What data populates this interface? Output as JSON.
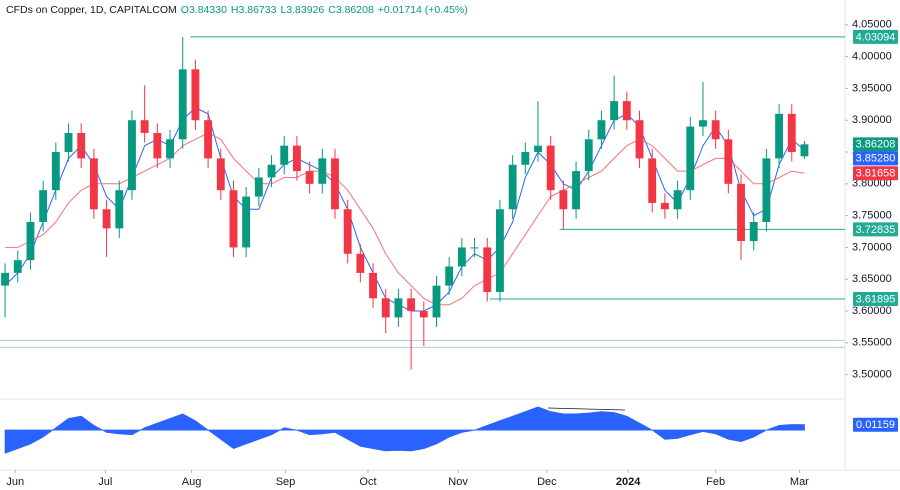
{
  "chart_data": {
    "type": "candlestick",
    "header": [
      "CFDs on Copper, 1D, CAPITALCOM",
      "O3.84330",
      "H3.86733",
      "L3.83926",
      "C3.86208",
      "+0.01714 (+0.45%)"
    ],
    "up_color": "#089981",
    "down_color": "#f23645",
    "candles": {
      "open": [
        3.64,
        3.66,
        3.68,
        3.74,
        3.79,
        3.85,
        3.88,
        3.84,
        3.76,
        3.73,
        3.79,
        3.9,
        3.88,
        3.84,
        3.87,
        3.98,
        3.9,
        3.84,
        3.79,
        3.7,
        3.78,
        3.81,
        3.83,
        3.86,
        3.82,
        3.8,
        3.84,
        3.76,
        3.69,
        3.66,
        3.62,
        3.59,
        3.62,
        3.6,
        3.59,
        3.64,
        3.67,
        3.7,
        3.7,
        3.63,
        3.76,
        3.83,
        3.85,
        3.86,
        3.79,
        3.76,
        3.82,
        3.87,
        3.9,
        3.93,
        3.9,
        3.84,
        3.77,
        3.76,
        3.79,
        3.89,
        3.9,
        3.87,
        3.8,
        3.71,
        3.74,
        3.84,
        3.91,
        3.8433
      ],
      "high": [
        3.675,
        3.695,
        3.755,
        3.805,
        3.865,
        3.895,
        3.895,
        3.855,
        3.775,
        3.805,
        3.915,
        3.955,
        3.895,
        3.885,
        4.031,
        3.995,
        3.915,
        3.855,
        3.805,
        3.795,
        3.825,
        3.845,
        3.875,
        3.875,
        3.835,
        3.855,
        3.855,
        3.775,
        3.705,
        3.675,
        3.635,
        3.635,
        3.635,
        3.615,
        3.655,
        3.685,
        3.715,
        3.715,
        3.715,
        3.775,
        3.845,
        3.865,
        3.93,
        3.875,
        3.805,
        3.835,
        3.885,
        3.915,
        3.97,
        3.945,
        3.915,
        3.855,
        3.785,
        3.805,
        3.905,
        3.96,
        3.915,
        3.885,
        3.815,
        3.755,
        3.855,
        3.925,
        3.925,
        3.86733
      ],
      "low": [
        3.59,
        3.645,
        3.665,
        3.725,
        3.775,
        3.835,
        3.825,
        3.745,
        3.685,
        3.715,
        3.775,
        3.865,
        3.825,
        3.825,
        3.855,
        3.885,
        3.825,
        3.775,
        3.685,
        3.685,
        3.765,
        3.795,
        3.815,
        3.805,
        3.785,
        3.785,
        3.745,
        3.675,
        3.645,
        3.605,
        3.565,
        3.575,
        3.508,
        3.545,
        3.575,
        3.625,
        3.655,
        3.685,
        3.615,
        3.615,
        3.745,
        3.815,
        3.835,
        3.775,
        3.728,
        3.745,
        3.805,
        3.855,
        3.885,
        3.885,
        3.825,
        3.755,
        3.745,
        3.745,
        3.775,
        3.875,
        3.855,
        3.785,
        3.68,
        3.695,
        3.725,
        3.825,
        3.835,
        3.83926
      ],
      "close": [
        3.66,
        3.68,
        3.74,
        3.79,
        3.85,
        3.88,
        3.84,
        3.76,
        3.73,
        3.79,
        3.9,
        3.88,
        3.84,
        3.87,
        3.98,
        3.9,
        3.84,
        3.79,
        3.7,
        3.78,
        3.81,
        3.83,
        3.86,
        3.82,
        3.8,
        3.84,
        3.76,
        3.69,
        3.66,
        3.62,
        3.59,
        3.62,
        3.6,
        3.59,
        3.64,
        3.67,
        3.7,
        3.7,
        3.63,
        3.76,
        3.83,
        3.85,
        3.86,
        3.79,
        3.76,
        3.82,
        3.87,
        3.9,
        3.93,
        3.9,
        3.84,
        3.77,
        3.76,
        3.79,
        3.89,
        3.9,
        3.87,
        3.8,
        3.71,
        3.74,
        3.84,
        3.91,
        3.85,
        3.86208
      ]
    },
    "moving_averages": [
      {
        "color": "#2962ff",
        "values": [
          3.64,
          3.66,
          3.69,
          3.74,
          3.79,
          3.84,
          3.86,
          3.83,
          3.78,
          3.76,
          3.81,
          3.86,
          3.87,
          3.86,
          3.9,
          3.92,
          3.91,
          3.84,
          3.78,
          3.76,
          3.76,
          3.81,
          3.83,
          3.84,
          3.83,
          3.82,
          3.8,
          3.76,
          3.7,
          3.66,
          3.62,
          3.61,
          3.6,
          3.6,
          3.61,
          3.63,
          3.67,
          3.69,
          3.68,
          3.7,
          3.74,
          3.81,
          3.85,
          3.83,
          3.8,
          3.79,
          3.82,
          3.86,
          3.9,
          3.91,
          3.89,
          3.84,
          3.79,
          3.77,
          3.81,
          3.86,
          3.89,
          3.86,
          3.79,
          3.75,
          3.76,
          3.83,
          3.87,
          3.8528
        ]
      },
      {
        "color": "#f7727c",
        "values": [
          3.7,
          3.7,
          3.71,
          3.72,
          3.74,
          3.77,
          3.79,
          3.8,
          3.8,
          3.8,
          3.81,
          3.82,
          3.83,
          3.84,
          3.86,
          3.87,
          3.88,
          3.87,
          3.84,
          3.82,
          3.8,
          3.8,
          3.81,
          3.81,
          3.82,
          3.82,
          3.81,
          3.79,
          3.76,
          3.73,
          3.69,
          3.66,
          3.64,
          3.62,
          3.61,
          3.61,
          3.62,
          3.64,
          3.65,
          3.66,
          3.69,
          3.72,
          3.75,
          3.78,
          3.79,
          3.8,
          3.81,
          3.82,
          3.84,
          3.86,
          3.87,
          3.86,
          3.84,
          3.82,
          3.82,
          3.83,
          3.84,
          3.84,
          3.82,
          3.8,
          3.8,
          3.81,
          3.82,
          3.81658
        ]
      }
    ],
    "price_labels": [
      {
        "value": 3.86208,
        "label": "3.86208",
        "color": "#089981"
      },
      {
        "value": 3.8528,
        "label": "3.85280",
        "color": "#2962ff"
      },
      {
        "value": 3.81658,
        "label": "3.81658",
        "color": "#f23645"
      }
    ],
    "levels": [
      {
        "value": 4.03094,
        "label": "4.03094",
        "x": 14.6
      },
      {
        "value": 3.72835,
        "label": "3.72835",
        "x": 43.7
      },
      {
        "value": 3.61895,
        "label": "3.61895",
        "x": 38.2
      }
    ],
    "level_color": "#22ab94",
    "reference_lines": [
      3.554,
      3.543
    ],
    "xlim": [
      -0.4,
      65.8
    ],
    "ylim": [
      3.468,
      4.089
    ],
    "yticks": [
      {
        "value": 4.05,
        "label": "4.05000"
      },
      {
        "value": 4.0,
        "label": "4.00000"
      },
      {
        "value": 3.95,
        "label": "3.95000"
      },
      {
        "value": 3.9,
        "label": "3.90000"
      },
      {
        "value": 3.85,
        "label": "3.85000"
      },
      {
        "value": 3.8,
        "label": "3.80000"
      },
      {
        "value": 3.75,
        "label": "3.75000"
      },
      {
        "value": 3.7,
        "label": "3.70000"
      },
      {
        "value": 3.65,
        "label": "3.65000"
      },
      {
        "value": 3.6,
        "label": "3.60000"
      },
      {
        "value": 3.55,
        "label": "3.55000"
      },
      {
        "value": 3.5,
        "label": "3.50000"
      }
    ],
    "xticks": [
      {
        "value": 0.8,
        "label": "Jun"
      },
      {
        "value": 7.9,
        "label": "Jul"
      },
      {
        "value": 14.7,
        "label": "Aug"
      },
      {
        "value": 22.1,
        "label": "Sep"
      },
      {
        "value": 28.6,
        "label": "Oct"
      },
      {
        "value": 35.7,
        "label": "Nov"
      },
      {
        "value": 42.7,
        "label": "Dec"
      },
      {
        "value": 49.1,
        "label": "2024"
      },
      {
        "value": 56,
        "label": "Feb"
      },
      {
        "value": 62.6,
        "label": "Mar"
      }
    ],
    "oscillator": {
      "color": "#2962ff",
      "ylim": [
        -0.082,
        0.065
      ],
      "values": [
        -0.05,
        -0.04,
        -0.03,
        -0.015,
        0.005,
        0.025,
        0.03,
        0.01,
        -0.005,
        -0.008,
        -0.01,
        0.005,
        0.015,
        0.025,
        0.035,
        0.02,
        0.0,
        -0.02,
        -0.04,
        -0.03,
        -0.02,
        -0.01,
        0.005,
        0.0,
        -0.01,
        -0.008,
        -0.005,
        -0.02,
        -0.035,
        -0.04,
        -0.045,
        -0.044,
        -0.045,
        -0.04,
        -0.03,
        -0.015,
        -0.005,
        0.0,
        0.01,
        0.02,
        0.03,
        0.04,
        0.05,
        0.04,
        0.035,
        0.035,
        0.037,
        0.04,
        0.038,
        0.03,
        0.015,
        0.0,
        -0.02,
        -0.018,
        -0.01,
        -0.003,
        -0.008,
        -0.02,
        -0.025,
        -0.015,
        0.0,
        0.01,
        0.012,
        0.01159
      ],
      "last_label": "0.01159"
    }
  }
}
